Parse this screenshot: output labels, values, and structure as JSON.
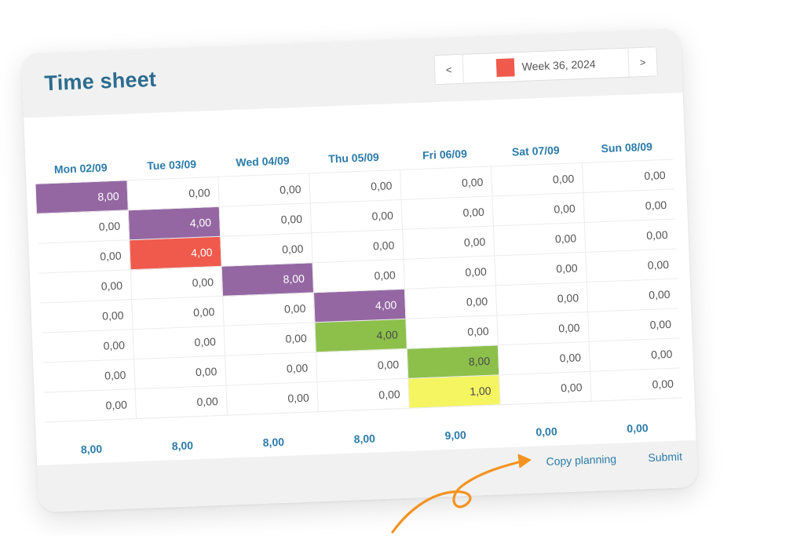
{
  "header": {
    "title": "Time sheet",
    "prev_label": "<",
    "next_label": ">",
    "week_label": "Week 36, 2024",
    "week_color": "#ef5a4c"
  },
  "days": [
    "Mon 02/09",
    "Tue 03/09",
    "Wed 04/09",
    "Thu 05/09",
    "Fri 06/09",
    "Sat 07/09",
    "Sun 08/09"
  ],
  "rows": [
    [
      {
        "v": "8,00",
        "c": "purple"
      },
      {
        "v": "0,00"
      },
      {
        "v": "0,00"
      },
      {
        "v": "0,00"
      },
      {
        "v": "0,00"
      },
      {
        "v": "0,00"
      },
      {
        "v": "0,00"
      }
    ],
    [
      {
        "v": "0,00"
      },
      {
        "v": "4,00",
        "c": "purple"
      },
      {
        "v": "0,00"
      },
      {
        "v": "0,00"
      },
      {
        "v": "0,00"
      },
      {
        "v": "0,00"
      },
      {
        "v": "0,00"
      }
    ],
    [
      {
        "v": "0,00"
      },
      {
        "v": "4,00",
        "c": "red"
      },
      {
        "v": "0,00"
      },
      {
        "v": "0,00"
      },
      {
        "v": "0,00"
      },
      {
        "v": "0,00"
      },
      {
        "v": "0,00"
      }
    ],
    [
      {
        "v": "0,00"
      },
      {
        "v": "0,00"
      },
      {
        "v": "8,00",
        "c": "purple"
      },
      {
        "v": "0,00"
      },
      {
        "v": "0,00"
      },
      {
        "v": "0,00"
      },
      {
        "v": "0,00"
      }
    ],
    [
      {
        "v": "0,00"
      },
      {
        "v": "0,00"
      },
      {
        "v": "0,00"
      },
      {
        "v": "4,00",
        "c": "purple"
      },
      {
        "v": "0,00"
      },
      {
        "v": "0,00"
      },
      {
        "v": "0,00"
      }
    ],
    [
      {
        "v": "0,00"
      },
      {
        "v": "0,00"
      },
      {
        "v": "0,00"
      },
      {
        "v": "4,00",
        "c": "green"
      },
      {
        "v": "0,00"
      },
      {
        "v": "0,00"
      },
      {
        "v": "0,00"
      }
    ],
    [
      {
        "v": "0,00"
      },
      {
        "v": "0,00"
      },
      {
        "v": "0,00"
      },
      {
        "v": "0,00"
      },
      {
        "v": "8,00",
        "c": "green"
      },
      {
        "v": "0,00"
      },
      {
        "v": "0,00"
      }
    ],
    [
      {
        "v": "0,00"
      },
      {
        "v": "0,00"
      },
      {
        "v": "0,00"
      },
      {
        "v": "0,00"
      },
      {
        "v": "1,00",
        "c": "yellow"
      },
      {
        "v": "0,00"
      },
      {
        "v": "0,00"
      }
    ]
  ],
  "totals": [
    "8,00",
    "8,00",
    "8,00",
    "8,00",
    "9,00",
    "0,00",
    "0,00"
  ],
  "colors": {
    "purple": "#9467a3",
    "red": "#ef5a4c",
    "green": "#8cc04b",
    "yellow": "#f4f560",
    "accent": "#2b7ba8",
    "arrow": "#f39321"
  },
  "footer": {
    "copy_label": "Copy planning",
    "submit_label": "Submit"
  }
}
